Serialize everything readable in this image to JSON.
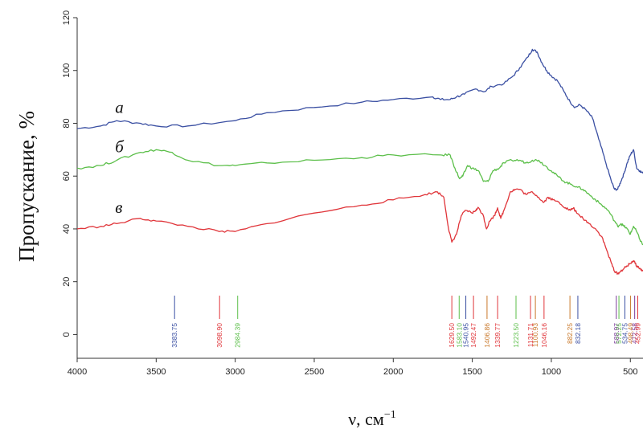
{
  "chart_data": {
    "type": "line",
    "title": "",
    "xlabel": "ν, см",
    "xlabel_sup": "−1",
    "ylabel": "Пропускание, %",
    "xlim": [
      4000,
      420
    ],
    "x_reversed": true,
    "ylim": [
      -9,
      120
    ],
    "x_ticks": [
      "4000",
      "3500",
      "3000",
      "2500",
      "2000",
      "1500",
      "1000",
      "500"
    ],
    "y_ticks": [
      "0",
      "20",
      "40",
      "60",
      "80",
      "100",
      "120"
    ],
    "grid": false,
    "colors": {
      "a": "#3a4fa2",
      "b": "#5cbf4a",
      "c": "#e0353a",
      "orange": "#c9782a",
      "purple": "#7a3a9a"
    },
    "series": [
      {
        "name": "а",
        "color": "#3a4fa2",
        "points": [
          [
            4000,
            78
          ],
          [
            3850,
            79
          ],
          [
            3750,
            81
          ],
          [
            3600,
            80
          ],
          [
            3500,
            79
          ],
          [
            3300,
            79
          ],
          [
            3000,
            81
          ],
          [
            2800,
            84
          ],
          [
            2500,
            86
          ],
          [
            2200,
            88
          ],
          [
            2000,
            89
          ],
          [
            1750,
            90
          ],
          [
            1700,
            89
          ],
          [
            1640,
            89
          ],
          [
            1600,
            90
          ],
          [
            1550,
            91
          ],
          [
            1480,
            93
          ],
          [
            1420,
            92
          ],
          [
            1380,
            94
          ],
          [
            1300,
            95
          ],
          [
            1240,
            98
          ],
          [
            1200,
            101
          ],
          [
            1150,
            105
          ],
          [
            1120,
            108
          ],
          [
            1090,
            107
          ],
          [
            1060,
            103
          ],
          [
            1030,
            100
          ],
          [
            1000,
            98
          ],
          [
            960,
            96
          ],
          [
            920,
            92
          ],
          [
            880,
            88
          ],
          [
            850,
            86
          ],
          [
            820,
            87
          ],
          [
            780,
            85
          ],
          [
            740,
            82
          ],
          [
            700,
            74
          ],
          [
            660,
            66
          ],
          [
            620,
            58
          ],
          [
            600,
            55
          ],
          [
            580,
            55
          ],
          [
            560,
            58
          ],
          [
            540,
            61
          ],
          [
            520,
            65
          ],
          [
            500,
            68
          ],
          [
            480,
            70
          ],
          [
            460,
            63
          ],
          [
            440,
            62
          ],
          [
            420,
            61
          ]
        ]
      },
      {
        "name": "б",
        "color": "#5cbf4a",
        "points": [
          [
            4000,
            63
          ],
          [
            3850,
            64
          ],
          [
            3750,
            66
          ],
          [
            3600,
            69
          ],
          [
            3500,
            70
          ],
          [
            3400,
            69
          ],
          [
            3300,
            66
          ],
          [
            3100,
            64
          ],
          [
            3000,
            64
          ],
          [
            2800,
            65
          ],
          [
            2500,
            66
          ],
          [
            2200,
            67
          ],
          [
            2000,
            68
          ],
          [
            1700,
            68
          ],
          [
            1640,
            68
          ],
          [
            1610,
            63
          ],
          [
            1580,
            59
          ],
          [
            1560,
            60
          ],
          [
            1530,
            64
          ],
          [
            1500,
            63
          ],
          [
            1460,
            62
          ],
          [
            1430,
            58
          ],
          [
            1400,
            58
          ],
          [
            1370,
            62
          ],
          [
            1330,
            63
          ],
          [
            1300,
            65
          ],
          [
            1250,
            66
          ],
          [
            1200,
            66
          ],
          [
            1160,
            65
          ],
          [
            1120,
            66
          ],
          [
            1080,
            66
          ],
          [
            1040,
            64
          ],
          [
            1000,
            62
          ],
          [
            960,
            60
          ],
          [
            920,
            58
          ],
          [
            880,
            57
          ],
          [
            840,
            56
          ],
          [
            800,
            55
          ],
          [
            760,
            53
          ],
          [
            720,
            51
          ],
          [
            680,
            49
          ],
          [
            640,
            47
          ],
          [
            600,
            43
          ],
          [
            580,
            41
          ],
          [
            560,
            42
          ],
          [
            540,
            41
          ],
          [
            520,
            40
          ],
          [
            500,
            38
          ],
          [
            480,
            41
          ],
          [
            460,
            39
          ],
          [
            440,
            36
          ],
          [
            420,
            34
          ]
        ]
      },
      {
        "name": "в",
        "color": "#e0353a",
        "points": [
          [
            4000,
            40
          ],
          [
            3850,
            41
          ],
          [
            3750,
            42
          ],
          [
            3600,
            44
          ],
          [
            3500,
            43
          ],
          [
            3300,
            41
          ],
          [
            3100,
            39
          ],
          [
            3000,
            39
          ],
          [
            2800,
            42
          ],
          [
            2500,
            46
          ],
          [
            2200,
            49
          ],
          [
            2000,
            51
          ],
          [
            1800,
            53
          ],
          [
            1720,
            54
          ],
          [
            1680,
            52
          ],
          [
            1650,
            40
          ],
          [
            1630,
            35
          ],
          [
            1600,
            38
          ],
          [
            1570,
            45
          ],
          [
            1540,
            47
          ],
          [
            1500,
            46
          ],
          [
            1480,
            47
          ],
          [
            1460,
            48
          ],
          [
            1430,
            45
          ],
          [
            1410,
            40
          ],
          [
            1390,
            43
          ],
          [
            1360,
            45
          ],
          [
            1340,
            48
          ],
          [
            1320,
            44
          ],
          [
            1300,
            47
          ],
          [
            1260,
            54
          ],
          [
            1230,
            55
          ],
          [
            1200,
            55
          ],
          [
            1160,
            53
          ],
          [
            1120,
            54
          ],
          [
            1080,
            52
          ],
          [
            1050,
            50
          ],
          [
            1020,
            52
          ],
          [
            990,
            51
          ],
          [
            950,
            50
          ],
          [
            910,
            48
          ],
          [
            880,
            47
          ],
          [
            860,
            48
          ],
          [
            840,
            46
          ],
          [
            800,
            44
          ],
          [
            760,
            42
          ],
          [
            720,
            40
          ],
          [
            680,
            37
          ],
          [
            650,
            32
          ],
          [
            620,
            27
          ],
          [
            600,
            24
          ],
          [
            580,
            23
          ],
          [
            560,
            24
          ],
          [
            540,
            25
          ],
          [
            520,
            26
          ],
          [
            500,
            27
          ],
          [
            480,
            28
          ],
          [
            460,
            26
          ],
          [
            440,
            25
          ],
          [
            420,
            24
          ]
        ]
      }
    ],
    "curve_labels": [
      {
        "series": "а",
        "text": "а",
        "x": 3760,
        "y": 84
      },
      {
        "series": "б",
        "text": "б",
        "x": 3760,
        "y": 69
      },
      {
        "series": "в",
        "text": "в",
        "x": 3760,
        "y": 46
      }
    ],
    "peaks": [
      {
        "x": 3383.75,
        "label": "3383.75",
        "color": "#3a4fa2"
      },
      {
        "x": 3098.9,
        "label": "3098.90",
        "color": "#e0353a"
      },
      {
        "x": 2984.39,
        "label": "2984.39",
        "color": "#5cbf4a"
      },
      {
        "x": 1629.5,
        "label": "1629.50",
        "color": "#e0353a"
      },
      {
        "x": 1583.1,
        "label": "1583.10",
        "color": "#5cbf4a"
      },
      {
        "x": 1540.95,
        "label": "1540.95",
        "color": "#3a4fa2"
      },
      {
        "x": 1492.47,
        "label": "1492.47",
        "color": "#e0353a"
      },
      {
        "x": 1406.86,
        "label": "1406.86",
        "color": "#c9782a"
      },
      {
        "x": 1339.77,
        "label": "1339.77",
        "color": "#e0353a"
      },
      {
        "x": 1223.5,
        "label": "1223.50",
        "color": "#5cbf4a"
      },
      {
        "x": 1131.71,
        "label": "1131.71",
        "color": "#e0353a"
      },
      {
        "x": 1100.93,
        "label": "1100.93",
        "color": "#c9782a"
      },
      {
        "x": 1046.16,
        "label": "1046.16",
        "color": "#e0353a"
      },
      {
        "x": 882.25,
        "label": "882.25",
        "color": "#c9782a"
      },
      {
        "x": 832.18,
        "label": "832.18",
        "color": "#3a4fa2"
      },
      {
        "x": 588.97,
        "label": "588.97",
        "color": "#7a3a9a"
      },
      {
        "x": 572.25,
        "label": "572.25",
        "color": "#5cbf4a"
      },
      {
        "x": 534.75,
        "label": "534.75",
        "color": "#3a4fa2"
      },
      {
        "x": 498.49,
        "label": "498.49",
        "color": "#c9782a"
      },
      {
        "x": 472.58,
        "label": "472.58",
        "color": "#7a3a9a"
      },
      {
        "x": 452.99,
        "label": "452.99",
        "color": "#e0353a"
      }
    ]
  }
}
